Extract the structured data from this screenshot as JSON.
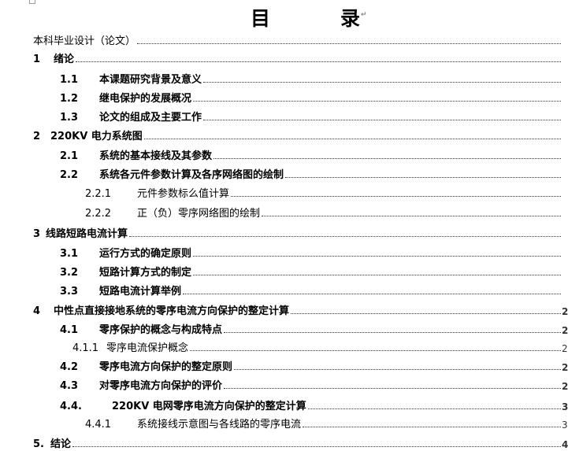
{
  "title": {
    "char1": "目",
    "char2": "录"
  },
  "entries": [
    {
      "num": "",
      "text": "本科毕业设计（论文）",
      "page": "",
      "indent": 42,
      "gap": 0,
      "bold": false
    },
    {
      "num": "1",
      "text": "绪论",
      "page": "",
      "indent": 42,
      "gap": 26,
      "bold": true
    },
    {
      "num": "1.1",
      "text": "本课题研究背景及意义",
      "page": "",
      "indent": 76,
      "gap": 50,
      "bold": true
    },
    {
      "num": "1.2",
      "text": "继电保护的发展概况",
      "page": "",
      "indent": 76,
      "gap": 50,
      "bold": true
    },
    {
      "num": "1.3",
      "text": "论文的组成及主要工作",
      "page": "",
      "indent": 76,
      "gap": 50,
      "bold": true
    },
    {
      "num": "2",
      "text": "220KV 电力系统图",
      "page": "",
      "indent": 42,
      "gap": 22,
      "bold": true
    },
    {
      "num": "2.1",
      "text": "系统的基本接线及其参数",
      "page": "",
      "indent": 76,
      "gap": 50,
      "bold": true
    },
    {
      "num": "2.2",
      "text": "系统各元件参数计算及各序网络图的绘制",
      "page": "",
      "indent": 76,
      "gap": 50,
      "bold": true
    },
    {
      "num": "2.2.1",
      "text": "元件参数标么值计算",
      "page": "",
      "indent": 108,
      "gap": 66,
      "bold": false
    },
    {
      "num": "2.2.2",
      "text": "正（负）零序网络图的绘制",
      "page": "",
      "indent": 108,
      "gap": 66,
      "bold": false
    },
    {
      "num": "3",
      "text": "线路短路电流计算",
      "page": "",
      "indent": 42,
      "gap": 16,
      "bold": true
    },
    {
      "num": "3.1",
      "text": "运行方式的确定原则",
      "page": "",
      "indent": 76,
      "gap": 50,
      "bold": true
    },
    {
      "num": "3.2",
      "text": "短路计算方式的制定",
      "page": "",
      "indent": 76,
      "gap": 50,
      "bold": true
    },
    {
      "num": "3.3",
      "text": "短路电流计算举例",
      "page": "",
      "indent": 76,
      "gap": 50,
      "bold": true
    },
    {
      "num": "4",
      "text": "中性点直接接地系统的零序电流方向保护的整定计算",
      "page": "2",
      "indent": 42,
      "gap": 26,
      "bold": true
    },
    {
      "num": "4.1",
      "text": "零序保护的概念与构成特点",
      "page": "2",
      "indent": 76,
      "gap": 50,
      "bold": true
    },
    {
      "num": "4.1.1",
      "text": "零序电流保护概念",
      "page": "2",
      "indent": 92,
      "gap": 43,
      "bold": false
    },
    {
      "num": "4.2",
      "text": "零序电流方向保护的整定原则",
      "page": "2",
      "indent": 76,
      "gap": 50,
      "bold": true
    },
    {
      "num": "4.3",
      "text": "对零序电流方向保护的评价",
      "page": "2",
      "indent": 76,
      "gap": 50,
      "bold": true
    },
    {
      "num": "4.4.",
      "text": "220KV 电网零序电流方向保护的整定计算",
      "page": "3",
      "indent": 76,
      "gap": 66,
      "bold": true
    },
    {
      "num": "4.4.1",
      "text": "系统接线示意图与各线路的零序电流",
      "page": "3",
      "indent": 108,
      "gap": 66,
      "bold": false
    },
    {
      "num": "5.",
      "text": "结论",
      "page": "4",
      "indent": 42,
      "gap": 22,
      "bold": true
    }
  ]
}
